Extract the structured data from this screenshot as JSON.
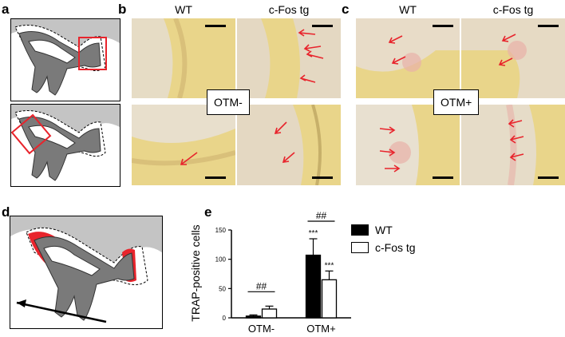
{
  "panels": {
    "a": "a",
    "b": "b",
    "c": "c",
    "d": "d",
    "e": "e"
  },
  "panel_b": {
    "col_labels": [
      "WT",
      "c-Fos tg"
    ],
    "condition_label": "OTM-"
  },
  "panel_c": {
    "col_labels": [
      "WT",
      "c-Fos tg"
    ],
    "condition_label": "OTM+"
  },
  "colors": {
    "arrow": "#e8242c",
    "highlight": "#e8242c",
    "tooth": "#7a7a7a",
    "bone": "#c4c4c4",
    "bar_wt": "#000000",
    "bar_tg": "#ffffff"
  },
  "chart_data": {
    "type": "bar",
    "ylabel": "TRAP-positive cells",
    "categories": [
      "OTM-",
      "OTM+"
    ],
    "ylim": [
      0,
      150
    ],
    "yticks": [
      0,
      50,
      100,
      150
    ],
    "series": [
      {
        "name": "WT",
        "values": [
          3,
          107
        ],
        "errors": [
          2,
          28
        ],
        "color": "#000000"
      },
      {
        "name": "c-Fos tg",
        "values": [
          15,
          65
        ],
        "errors": [
          5,
          15
        ],
        "color": "#ffffff"
      }
    ],
    "annotations": {
      "significance_tg_vs_wt": [
        "##",
        "##"
      ],
      "significance_otm": [
        "***",
        "***"
      ]
    },
    "legend_placement": "top-right"
  }
}
